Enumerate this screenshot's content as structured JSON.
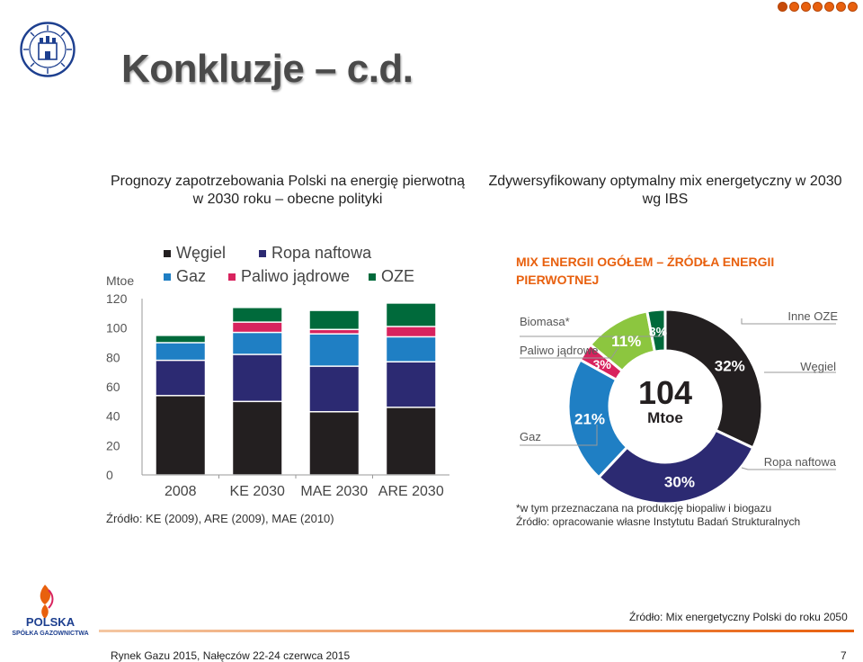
{
  "slide": {
    "title": "Konkluzje – c.d.",
    "left_subtitle": "Prognozy zapotrzebowania Polski na energię pierwotną w 2030 roku – obecne polityki",
    "right_subtitle": "Zdywersyfikowany optymalny mix energetyczny w 2030 wg IBS",
    "source_bottom": "Źródło: Mix energetyczny Polski do roku 2050",
    "footer": "Rynek Gazu 2015, Nałęczów 22-24 czerwca 2015",
    "page_number": "7",
    "logo_text": "POLSKA",
    "logo_subtext": "SPÓŁKA GAZOWNICTWA",
    "accent_color": "#e8600e"
  },
  "chart_data": [
    {
      "type": "bar",
      "stacked": true,
      "unit_label": "Mtoe",
      "categories": [
        "2008",
        "KE 2030",
        "MAE 2030",
        "ARE 2030"
      ],
      "ylim": [
        0,
        120
      ],
      "yticks": [
        0,
        20,
        40,
        60,
        80,
        100,
        120
      ],
      "series": [
        {
          "name": "Węgiel",
          "color": "#231f20",
          "values": [
            54,
            50,
            43,
            46
          ]
        },
        {
          "name": "Ropa naftowa",
          "color": "#2c2a72",
          "values": [
            24,
            32,
            31,
            31
          ]
        },
        {
          "name": "Gaz",
          "color": "#1f7fc4",
          "values": [
            12,
            15,
            22,
            17
          ]
        },
        {
          "name": "Paliwo jądrowe",
          "color": "#d8235e",
          "values": [
            0,
            7,
            3,
            7
          ]
        },
        {
          "name": "OZE",
          "color": "#006a3b",
          "values": [
            5,
            10,
            13,
            16
          ]
        }
      ],
      "legend_position": "top",
      "source": "Źródło: KE (2009), ARE (2009), MAE (2010)"
    },
    {
      "type": "pie",
      "donut": true,
      "title": "MIX ENERGII OGÓŁEM – ŹRÓDŁA ENERGII PIERWOTNEJ",
      "center_value": "104",
      "center_unit": "Mtoe",
      "slices": [
        {
          "name": "Węgiel",
          "value": 32,
          "label": "32%",
          "color": "#231f20"
        },
        {
          "name": "Ropa naftowa",
          "value": 30,
          "label": "30%",
          "color": "#2c2a72"
        },
        {
          "name": "Gaz",
          "value": 21,
          "label": "21%",
          "color": "#1f7fc4"
        },
        {
          "name": "Paliwo jądrowe",
          "value": 3,
          "label": "3%",
          "color": "#d8235e"
        },
        {
          "name": "Biomasa*",
          "value": 11,
          "label": "11%",
          "color": "#8cc63f"
        },
        {
          "name": "Inne OZE",
          "value": 3,
          "label": "3%",
          "color": "#006a3b"
        }
      ],
      "footnote": "*w tym przeznaczana na produkcję biopaliw i biogazu",
      "source": "Źródło: opracowanie własne Instytutu Badań Strukturalnych"
    }
  ]
}
